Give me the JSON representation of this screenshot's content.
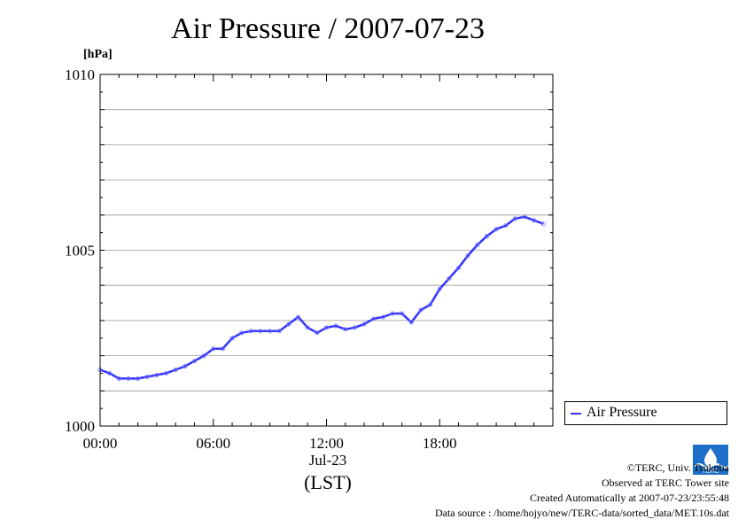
{
  "title": "Air Pressure / 2007-07-23",
  "unit_label": "[hPa]",
  "date_label": "Jul-23",
  "tz_label": "(LST)",
  "legend_label": "Air Pressure",
  "credits": {
    "copyright": "©TERC, Univ. Tsukuba",
    "observed": "Observed at TERC Tower site",
    "created": "Created Automatically at 2007-07-23/23:55:48",
    "source": "Data source : /home/hojyo/new/TERC-data/sorted_data/MET.10s.dat"
  },
  "logo_text": "TERC",
  "colors": {
    "series": "#3333ff",
    "grid": "#999999",
    "axis": "#000000"
  },
  "chart_data": {
    "type": "line",
    "title": "Air Pressure / 2007-07-23",
    "ylabel": "[hPa]",
    "xlabel": "Jul-23 (LST)",
    "ylim": [
      1000,
      1010
    ],
    "xlim": [
      "00:00",
      "24:00"
    ],
    "yticks": [
      "1000",
      "1005",
      "1010"
    ],
    "xticks": [
      "00:00",
      "06:00",
      "12:00",
      "18:00"
    ],
    "grid": true,
    "legend_position": "bottom-right, outside plot",
    "series": [
      {
        "name": "Air Pressure",
        "x_hours": [
          0,
          0.5,
          1.0,
          1.5,
          2.0,
          2.5,
          3.0,
          3.5,
          4.0,
          4.5,
          5.0,
          5.5,
          6.0,
          6.5,
          7.0,
          7.5,
          8.0,
          8.5,
          9.0,
          9.5,
          10.0,
          10.5,
          11.0,
          11.5,
          12.0,
          12.5,
          13.0,
          13.5,
          14.0,
          14.5,
          15.0,
          15.5,
          16.0,
          16.5,
          17.0,
          17.5,
          18.0,
          18.5,
          19.0,
          19.5,
          20.0,
          20.5,
          21.0,
          21.5,
          22.0,
          22.5,
          23.0,
          23.5
        ],
        "values": [
          1001.6,
          1001.5,
          1001.35,
          1001.35,
          1001.35,
          1001.4,
          1001.45,
          1001.5,
          1001.6,
          1001.7,
          1001.85,
          1002.0,
          1002.2,
          1002.2,
          1002.5,
          1002.65,
          1002.7,
          1002.7,
          1002.7,
          1002.7,
          1002.9,
          1003.1,
          1002.8,
          1002.65,
          1002.8,
          1002.85,
          1002.75,
          1002.8,
          1002.9,
          1003.05,
          1003.1,
          1003.2,
          1003.2,
          1002.95,
          1003.3,
          1003.45,
          1003.9,
          1004.2,
          1004.5,
          1004.85,
          1005.15,
          1005.4,
          1005.6,
          1005.7,
          1005.9,
          1005.95,
          1005.85,
          1005.75
        ]
      }
    ]
  }
}
